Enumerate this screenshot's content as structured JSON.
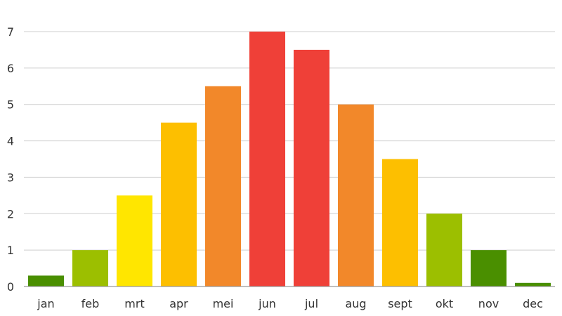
{
  "chart_data": {
    "type": "bar",
    "categories": [
      "jan",
      "feb",
      "mrt",
      "apr",
      "mei",
      "jun",
      "jul",
      "aug",
      "sept",
      "okt",
      "nov",
      "dec"
    ],
    "values": [
      0.3,
      1,
      2.5,
      4.5,
      5.5,
      7,
      6.5,
      5,
      3.5,
      2,
      1,
      0.1
    ],
    "colors": [
      "#4a8f00",
      "#9cbf00",
      "#ffe600",
      "#fdbf00",
      "#f2882a",
      "#ef4038",
      "#ef4038",
      "#f2882a",
      "#fdbf00",
      "#9cbf00",
      "#4a8f00",
      "#4a8f00"
    ],
    "yticks": [
      "0",
      "1",
      "2",
      "3",
      "4",
      "5",
      "6",
      "7"
    ],
    "ylim": [
      0,
      7
    ],
    "title": "",
    "xlabel": "",
    "ylabel": "",
    "grid": true,
    "legend": "none"
  }
}
